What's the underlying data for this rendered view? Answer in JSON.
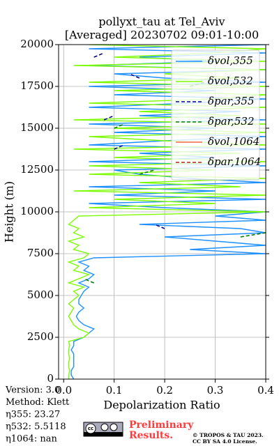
{
  "chart_data": {
    "type": "line",
    "orientation": "horizontal",
    "title": "pollyxt_tau at Tel_Aviv",
    "subtitle": "[Averaged] 20230702 09:01-10:00",
    "xlabel": "Depolarization Ratio",
    "ylabel": "Height (m)",
    "xlim": [
      -0.01,
      0.4
    ],
    "xticks": [
      {
        "value": 0,
        "label": "0.0"
      },
      0.1,
      0.2,
      0.3,
      0.4
    ],
    "ylim": [
      0,
      20000
    ],
    "yticks": [
      0,
      2500,
      5000,
      7500,
      10000,
      12500,
      15000,
      17500,
      20000
    ],
    "grid": true,
    "legend": "upper right",
    "heights": [
      0,
      250,
      500,
      750,
      1000,
      1250,
      1500,
      1750,
      2000,
      2250,
      2500,
      2750,
      3000,
      3250,
      3500,
      3750,
      4000,
      4250,
      4500,
      4750,
      5000,
      5250,
      5500,
      5750,
      6000,
      6250,
      6500,
      6750,
      7000,
      7250,
      7500,
      7750,
      8000,
      8250,
      8500,
      8750,
      9000,
      9250,
      9500,
      9750,
      10000,
      10250,
      10500,
      10750,
      11000,
      11250,
      11500,
      11750,
      12000,
      12250,
      12500,
      12750,
      13000,
      13250,
      13500,
      13750,
      14000,
      14250,
      14500,
      14750,
      15000,
      15250,
      15500,
      15750,
      16000,
      16250,
      16500,
      16750,
      17000,
      17250,
      17500,
      17750,
      18000,
      18250,
      18500,
      18750,
      19000,
      19250,
      19500,
      19750,
      20000
    ],
    "series": [
      {
        "name": "δvol,355",
        "color": "#1e90ff",
        "linestyle": "-",
        "values": [
          0.02,
          0.015,
          0.015,
          0.02,
          0.02,
          0.02,
          0.02,
          0.015,
          0.02,
          0.02,
          0.04,
          0.05,
          0.06,
          0.04,
          0.03,
          0.025,
          0.03,
          0.04,
          0.03,
          0.03,
          0.035,
          0.04,
          0.05,
          0.03,
          0.05,
          0.06,
          0.04,
          0.05,
          0.03,
          0.06,
          0.4,
          0.25,
          0.4,
          0.3,
          0.2,
          0.4,
          0.35,
          0.15,
          0.4,
          0.3,
          0.4,
          0.2,
          0.05,
          0.4,
          0.1,
          0.3,
          0.05,
          0.4,
          0.25,
          0.15,
          0.1,
          0.4,
          0.05,
          0.3,
          0.15,
          0.4,
          0.05,
          0.2,
          0.4,
          0.1,
          0.3,
          0.05,
          0.4,
          0.15,
          0.35,
          0.05,
          0.25,
          0.4,
          0.1,
          0.3,
          0.05,
          0.4,
          0.2,
          0.1,
          0.4,
          0.05,
          0.3,
          0.15,
          0.4,
          0.05,
          0.4
        ]
      },
      {
        "name": "δvol,532",
        "color": "#7cfc00",
        "linestyle": "-",
        "values": [
          0.01,
          0.01,
          0.012,
          0.01,
          0.01,
          0.012,
          0.01,
          0.01,
          0.012,
          0.01,
          0.04,
          0.05,
          0.03,
          0.02,
          0.015,
          0.01,
          0.015,
          0.02,
          0.01,
          0.02,
          0.03,
          0.02,
          0.04,
          0.01,
          0.03,
          0.05,
          0.02,
          0.03,
          0.01,
          0.04,
          0.05,
          0.02,
          0.03,
          0.01,
          0.04,
          0.02,
          0.03,
          0.01,
          0.02,
          0.03,
          0.4,
          0.05,
          0.3,
          0.1,
          0.4,
          0.02,
          0.35,
          0.15,
          0.4,
          0.05,
          0.3,
          0.05,
          0.4,
          0.1,
          0.35,
          0.02,
          0.4,
          0.2,
          0.05,
          0.4,
          0.1,
          0.4,
          0.02,
          0.35,
          0.15,
          0.4,
          0.05,
          0.3,
          0.4,
          0.1,
          0.4,
          0.05,
          0.35,
          0.2,
          0.4,
          0.02,
          0.4,
          0.1,
          0.3,
          0.4,
          0.05
        ]
      },
      {
        "name": "δpar,355",
        "color": "#00008b",
        "linestyle": "--",
        "values": [
          null,
          null,
          null,
          null,
          null,
          null,
          null,
          null,
          null,
          null,
          null,
          null,
          null,
          null,
          null,
          null,
          null,
          null,
          null,
          null,
          null,
          null,
          null,
          null,
          null,
          null,
          null,
          null,
          null,
          null,
          null,
          null,
          null,
          null,
          null,
          null,
          0.2,
          0.18,
          null,
          null,
          null,
          null,
          null,
          null,
          null,
          null,
          null,
          null,
          null,
          null,
          null,
          null,
          null,
          null,
          null,
          0.1,
          0.12,
          null,
          null,
          null,
          null,
          null,
          0.08,
          0.1,
          null,
          null,
          null,
          null,
          null,
          null,
          null,
          null,
          0.15,
          0.13,
          null,
          null,
          null,
          0.06,
          0.08,
          null,
          null
        ]
      },
      {
        "name": "δpar,532",
        "color": "#008000",
        "linestyle": "--",
        "values": [
          null,
          null,
          null,
          null,
          null,
          null,
          null,
          null,
          null,
          null,
          null,
          null,
          null,
          null,
          null,
          null,
          null,
          null,
          null,
          null,
          null,
          null,
          null,
          0.06,
          0.04,
          null,
          null,
          null,
          null,
          null,
          null,
          null,
          null,
          null,
          0.35,
          0.4,
          null,
          null,
          null,
          null,
          null,
          null,
          null,
          null,
          null,
          null,
          null,
          null,
          null,
          0.15,
          0.18,
          null,
          null,
          null,
          null,
          null,
          null,
          null,
          null,
          null,
          0.1,
          0.12,
          null,
          null,
          null,
          null,
          null,
          null,
          null,
          null,
          0.25,
          0.28,
          null,
          null,
          null,
          null,
          null,
          null,
          null,
          null,
          null
        ]
      },
      {
        "name": "δvol,1064",
        "color": "#ff6347",
        "linestyle": "-",
        "values": [
          null,
          null,
          null,
          null,
          null,
          null,
          null,
          null,
          null,
          null,
          null,
          null,
          null,
          null,
          null,
          null,
          null,
          null,
          null,
          null,
          null,
          null,
          null,
          null,
          null,
          null,
          null,
          null,
          null,
          null,
          null,
          null,
          null,
          null,
          null,
          null,
          null,
          null,
          null,
          null,
          null,
          null,
          null,
          null,
          null,
          null,
          null,
          null,
          null,
          null,
          null,
          null,
          null,
          null,
          null,
          null,
          null,
          null,
          null,
          null,
          null,
          null,
          null,
          null,
          null,
          null,
          null,
          null,
          null,
          null,
          null,
          null,
          null,
          null,
          null,
          null,
          null,
          null,
          null,
          null,
          null
        ]
      },
      {
        "name": "δpar,1064",
        "color": "#b22222",
        "linestyle": "--",
        "values": [
          null,
          null,
          null,
          null,
          null,
          null,
          null,
          null,
          null,
          null,
          null,
          null,
          null,
          null,
          null,
          null,
          null,
          null,
          null,
          null,
          null,
          null,
          null,
          null,
          null,
          null,
          null,
          null,
          null,
          null,
          null,
          null,
          null,
          null,
          null,
          null,
          null,
          null,
          null,
          null,
          null,
          null,
          null,
          null,
          null,
          null,
          null,
          null,
          null,
          null,
          null,
          null,
          null,
          null,
          null,
          null,
          null,
          null,
          null,
          null,
          null,
          null,
          null,
          null,
          null,
          null,
          null,
          null,
          null,
          null,
          null,
          null,
          null,
          null,
          null,
          null,
          null,
          null,
          null,
          null,
          null
        ]
      }
    ],
    "annotations": [
      "Version: 3.0",
      "Method: Klett",
      "η355:  23.27",
      "η532: 5.5118",
      "η1064:    nan"
    ],
    "notice": [
      "Preliminary",
      "Results."
    ],
    "copyright": [
      "© TROPOS & TAU 2023.",
      "CC BY SA 4.0 License."
    ]
  }
}
